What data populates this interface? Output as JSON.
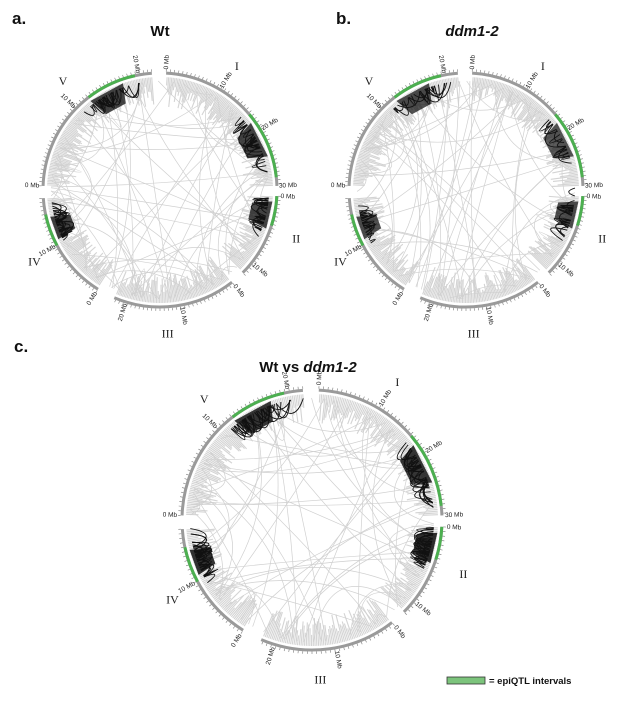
{
  "panels": [
    {
      "letter": "a.",
      "title": "Wt",
      "title_italic": "",
      "cx": 160,
      "cy": 190,
      "r": 117,
      "scale": 1.0,
      "black_density": [
        0.55,
        0.55,
        0.3,
        0.6,
        0.55
      ]
    },
    {
      "letter": "b.",
      "title": "",
      "title_italic": "ddm1-2",
      "cx": 466,
      "cy": 190,
      "r": 117,
      "scale": 1.0,
      "black_density": [
        0.35,
        0.45,
        0.25,
        0.45,
        0.45
      ]
    },
    {
      "letter": "c.",
      "title": "Wt vs ",
      "title_italic": "ddm1-2",
      "cx": 312,
      "cy": 520,
      "r": 130,
      "scale": 1.11,
      "black_density": [
        0.7,
        0.8,
        0.45,
        0.75,
        0.7
      ]
    }
  ],
  "chromosomes": [
    {
      "label": "I",
      "ticks": [
        "0 Mb",
        "10 Mb",
        "20 Mb",
        "30 Mb"
      ]
    },
    {
      "label": "II",
      "ticks": [
        "0 Mb",
        "10 Mb"
      ]
    },
    {
      "label": "III",
      "ticks": [
        "0 Mb",
        "10 Mb",
        "20 Mb"
      ]
    },
    {
      "label": "IV",
      "ticks": [
        "0 Mb",
        "10 Mb"
      ]
    },
    {
      "label": "V",
      "ticks": [
        "0 Mb",
        "10 Mb",
        "20 Mb"
      ]
    }
  ],
  "legend": {
    "label": "= epiQTL intervals",
    "color": "#5fb35f"
  },
  "colors": {
    "ring": "#9a9a9a",
    "density": "#d4d4d4",
    "link_light": "#d0d0d0",
    "link_dark": "#111111",
    "epiqtl": "#4caf50"
  }
}
